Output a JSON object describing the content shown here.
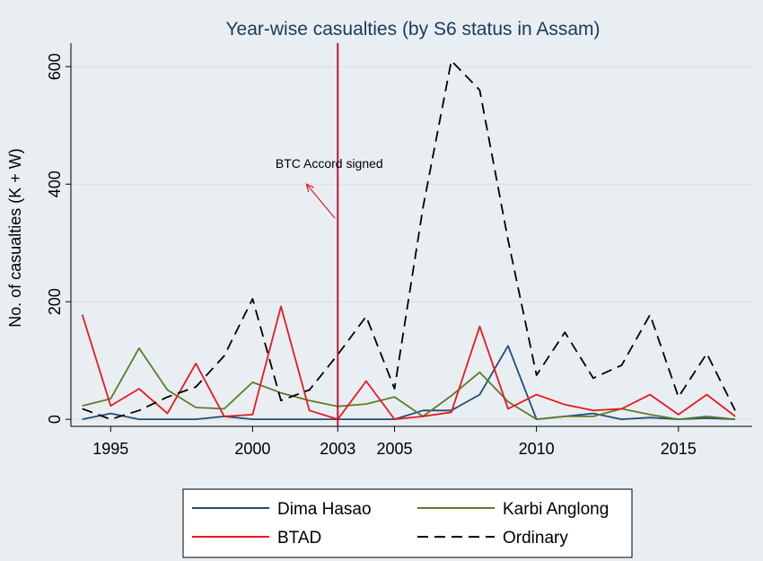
{
  "chart_data": {
    "type": "line",
    "title": "Year-wise casualties (by S6 status in Assam)",
    "xlabel": "",
    "ylabel": "No. of casualties (K + W)",
    "xlim": [
      1993.6,
      2017.6
    ],
    "ylim": [
      -12,
      640
    ],
    "x_ticks": [
      1995,
      2000,
      2003,
      2005,
      2010,
      2015
    ],
    "y_ticks": [
      0,
      200,
      400,
      600
    ],
    "grid": "horizontal",
    "legend_position": "bottom",
    "colors": {
      "background": "#e9eef3",
      "title": "#1a3a5c",
      "dima": "#1f4e79",
      "btad": "#e8191e",
      "karbi": "#5a7d2a",
      "ordinary": "#000000",
      "vline": "#c0143c",
      "annotation_arrow": "#e8191e"
    },
    "vline": {
      "x": 2003
    },
    "annotation": {
      "text": "BTC Accord signed",
      "text_x": 2002.7,
      "text_y": 428,
      "arrow_from": [
        2002.9,
        342
      ],
      "arrow_to": [
        2001.9,
        400
      ]
    },
    "x": [
      1994,
      1995,
      1996,
      1997,
      1998,
      1999,
      2000,
      2001,
      2002,
      2003,
      2004,
      2005,
      2006,
      2007,
      2008,
      2009,
      2010,
      2011,
      2012,
      2013,
      2014,
      2015,
      2016,
      2017
    ],
    "series": [
      {
        "name": "Dima Hasao",
        "key": "dima",
        "dash": "",
        "values": [
          0,
          10,
          0,
          0,
          0,
          5,
          0,
          0,
          0,
          0,
          0,
          0,
          15,
          15,
          42,
          125,
          0,
          5,
          10,
          0,
          3,
          0,
          2,
          0
        ]
      },
      {
        "name": "Karbi Anglong",
        "key": "karbi",
        "dash": "",
        "values": [
          23,
          35,
          121,
          50,
          20,
          18,
          63,
          45,
          32,
          22,
          26,
          38,
          5,
          40,
          80,
          30,
          0,
          5,
          5,
          18,
          8,
          0,
          5,
          0
        ]
      },
      {
        "name": "BTAD",
        "key": "btad",
        "dash": "",
        "values": [
          178,
          23,
          52,
          10,
          95,
          5,
          8,
          192,
          15,
          0,
          65,
          0,
          5,
          12,
          158,
          18,
          42,
          25,
          15,
          18,
          42,
          8,
          42,
          5
        ]
      },
      {
        "name": "Ordinary",
        "key": "ordinary",
        "dash": "12,7",
        "values": [
          18,
          0,
          15,
          38,
          55,
          108,
          205,
          32,
          50,
          110,
          175,
          52,
          360,
          610,
          560,
          305,
          75,
          148,
          70,
          92,
          178,
          38,
          112,
          15
        ]
      }
    ],
    "legend": [
      {
        "name": "Dima Hasao",
        "key": "dima",
        "dash": ""
      },
      {
        "name": "Karbi Anglong",
        "key": "karbi",
        "dash": ""
      },
      {
        "name": "BTAD",
        "key": "btad",
        "dash": ""
      },
      {
        "name": "Ordinary",
        "key": "ordinary",
        "dash": "12,7"
      }
    ]
  }
}
